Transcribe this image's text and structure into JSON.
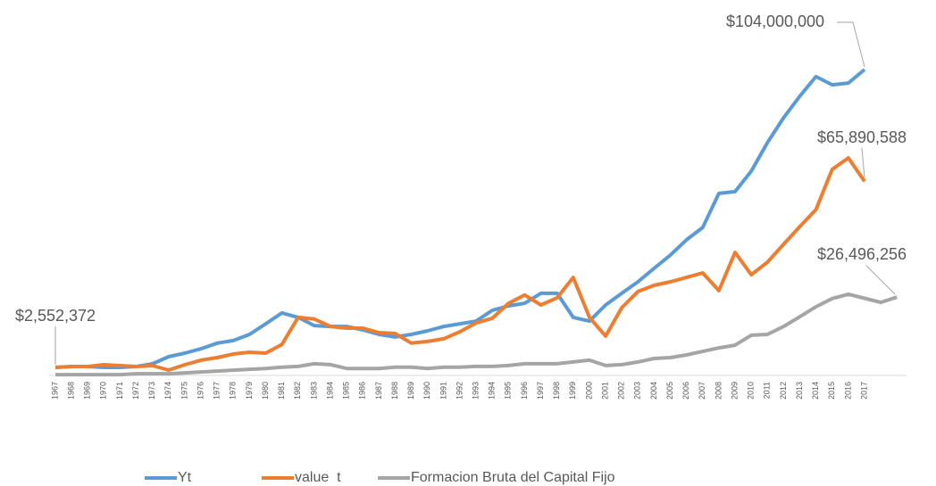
{
  "chart_data": {
    "type": "line",
    "categories": [
      "1967",
      "1968",
      "1969",
      "1970",
      "1971",
      "1972",
      "1973",
      "1974",
      "1975",
      "1976",
      "1977",
      "1978",
      "1979",
      "1980",
      "1981",
      "1982",
      "1983",
      "1984",
      "1985",
      "1986",
      "1987",
      "1988",
      "1989",
      "1990",
      "1991",
      "1992",
      "1993",
      "1994",
      "1995",
      "1996",
      "1997",
      "1998",
      "1999",
      "2000",
      "2001",
      "2002",
      "2003",
      "2004",
      "2005",
      "2006",
      "2007",
      "2008",
      "2009",
      "2010",
      "2011",
      "2012",
      "2013",
      "2014",
      "2015",
      "2016",
      "2017",
      null,
      null
    ],
    "ylim": [
      0,
      120000000
    ],
    "series": [
      {
        "name": "Yt",
        "color": "#5b9bd5",
        "values": [
          2552372,
          2850000,
          2850000,
          2550000,
          2550000,
          2850000,
          3770000,
          6200000,
          7400000,
          8900000,
          10800000,
          11700000,
          13800000,
          17400000,
          21100000,
          19600000,
          16800000,
          16500000,
          16500000,
          15300000,
          13800000,
          12900000,
          13800000,
          15000000,
          16500000,
          17400000,
          18300000,
          22000000,
          23500000,
          24400000,
          27800000,
          27800000,
          19600000,
          18300000,
          23800000,
          27800000,
          31700000,
          36300000,
          40800000,
          46000000,
          50200000,
          61800000,
          62400000,
          69400000,
          79100000,
          87600000,
          94900000,
          101600000,
          98800000,
          99400000,
          104000000,
          null,
          null
        ],
        "value_labels": [
          "$2,552,372",
          null,
          null,
          null,
          null,
          null,
          null,
          null,
          null,
          null,
          null,
          null,
          null,
          null,
          null,
          null,
          null,
          null,
          null,
          null,
          null,
          null,
          null,
          null,
          null,
          null,
          null,
          null,
          null,
          null,
          null,
          null,
          null,
          null,
          null,
          null,
          null,
          null,
          null,
          null,
          null,
          null,
          null,
          null,
          null,
          null,
          null,
          null,
          null,
          null,
          "$104,000,000",
          null,
          null
        ]
      },
      {
        "name": "value  t",
        "color": "#ed7d31",
        "values": [
          2550000,
          2850000,
          2850000,
          3460000,
          3160000,
          2850000,
          3160000,
          1640000,
          3460000,
          5000000,
          5900000,
          7100000,
          7700000,
          7400000,
          10400000,
          19600000,
          19000000,
          16500000,
          15900000,
          15900000,
          14400000,
          14100000,
          10800000,
          11400000,
          12300000,
          14700000,
          17700000,
          19300000,
          24400000,
          27200000,
          23800000,
          26200000,
          33200000,
          19600000,
          13200000,
          22900000,
          28400000,
          30500000,
          31700000,
          33200000,
          34700000,
          28700000,
          41700000,
          34100000,
          38400000,
          44500000,
          50500000,
          56300000,
          70000000,
          73900000,
          65890588,
          null,
          null
        ],
        "value_labels": [
          null,
          null,
          null,
          null,
          null,
          null,
          null,
          null,
          null,
          null,
          null,
          null,
          null,
          null,
          null,
          null,
          null,
          null,
          null,
          null,
          null,
          null,
          null,
          null,
          null,
          null,
          null,
          null,
          null,
          null,
          null,
          null,
          null,
          null,
          null,
          null,
          null,
          null,
          null,
          null,
          null,
          null,
          null,
          null,
          null,
          null,
          null,
          null,
          null,
          null,
          "$65,890,588",
          null,
          null
        ]
      },
      {
        "name": "Formacion Bruta del Capital Fijo",
        "color": "#a5a5a5",
        "values": [
          100000,
          100000,
          100000,
          100000,
          100000,
          400000,
          400000,
          400000,
          700000,
          1000000,
          1300000,
          1600000,
          1900000,
          2200000,
          2600000,
          2900000,
          3800000,
          3500000,
          2200000,
          2200000,
          2200000,
          2600000,
          2600000,
          2200000,
          2600000,
          2600000,
          2900000,
          2900000,
          3200000,
          3800000,
          3800000,
          3800000,
          4400000,
          5000000,
          3200000,
          3500000,
          4400000,
          5600000,
          5900000,
          6800000,
          8000000,
          9200000,
          10100000,
          13500000,
          13800000,
          16500000,
          19800000,
          23200000,
          26000000,
          27500000,
          26100000,
          24700000,
          26496256
        ],
        "value_labels": [
          null,
          null,
          null,
          null,
          null,
          null,
          null,
          null,
          null,
          null,
          null,
          null,
          null,
          null,
          null,
          null,
          null,
          null,
          null,
          null,
          null,
          null,
          null,
          null,
          null,
          null,
          null,
          null,
          null,
          null,
          null,
          null,
          null,
          null,
          null,
          null,
          null,
          null,
          null,
          null,
          null,
          null,
          null,
          null,
          null,
          null,
          null,
          null,
          null,
          null,
          null,
          null,
          "$26,496,256"
        ]
      }
    ]
  }
}
